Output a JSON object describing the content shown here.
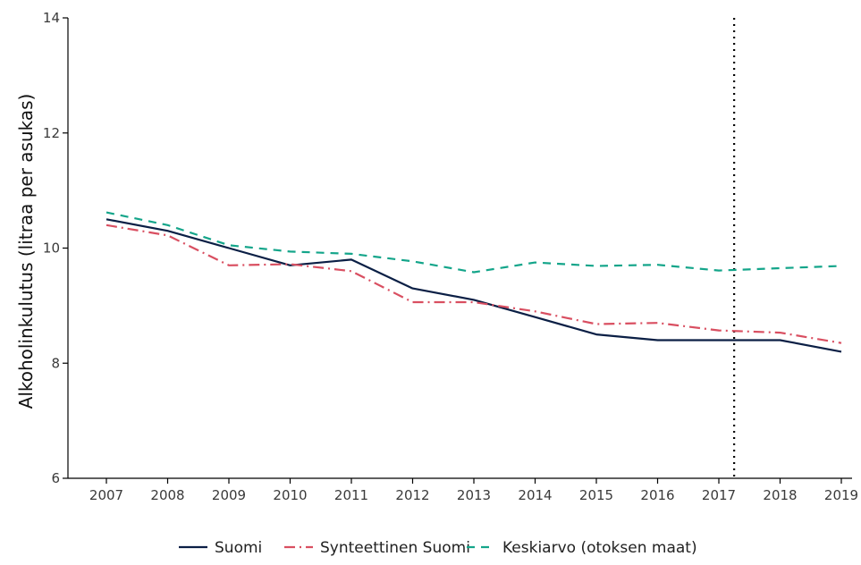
{
  "chart_data": {
    "type": "line",
    "title": "",
    "xlabel": "",
    "ylabel": "Alkoholinkulutus (litraa per asukas)",
    "x": [
      2007,
      2008,
      2009,
      2010,
      2011,
      2012,
      2013,
      2014,
      2015,
      2016,
      2017,
      2018,
      2019
    ],
    "ylim": [
      6,
      14
    ],
    "yticks": [
      6,
      8,
      10,
      12,
      14
    ],
    "grid": false,
    "legend_position": "bottom",
    "vline": {
      "x": 2017.25,
      "style": "dotted",
      "color": "#000000"
    },
    "series": [
      {
        "name": "Suomi",
        "color": "#0b1f45",
        "dash": "solid",
        "values": [
          10.5,
          10.3,
          10.0,
          9.7,
          9.8,
          9.3,
          9.1,
          8.8,
          8.5,
          8.4,
          8.4,
          8.4,
          8.2
        ]
      },
      {
        "name": "Synteettinen Suomi",
        "color": "#d94f61",
        "dash": "dashdot",
        "values": [
          10.4,
          10.22,
          9.7,
          9.72,
          9.6,
          9.06,
          9.06,
          8.9,
          8.68,
          8.7,
          8.57,
          8.53,
          8.35
        ]
      },
      {
        "name": "Keskiarvo (otoksen maat)",
        "color": "#14a58a",
        "dash": "dashed",
        "values": [
          10.62,
          10.4,
          10.05,
          9.94,
          9.9,
          9.77,
          9.58,
          9.75,
          9.69,
          9.71,
          9.61,
          9.65,
          9.69
        ]
      }
    ]
  }
}
